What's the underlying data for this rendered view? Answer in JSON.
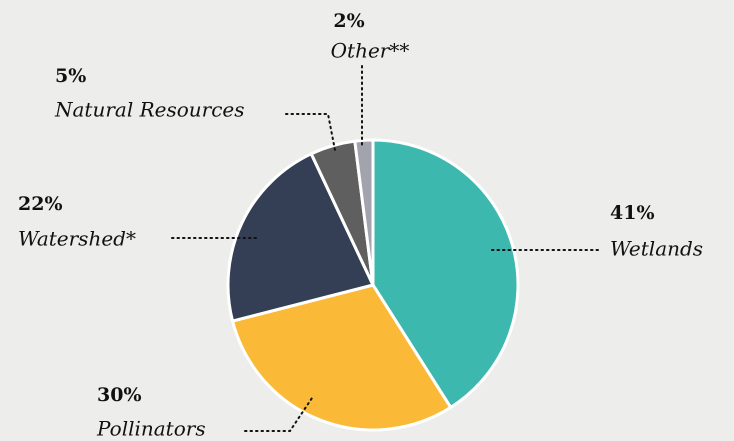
{
  "chart_data": {
    "type": "pie",
    "categories": [
      "Wetlands",
      "Pollinators",
      "Watershed*",
      "Natural Resources",
      "Other**"
    ],
    "values": [
      41,
      30,
      22,
      5,
      2
    ],
    "value_labels": [
      "41%",
      "30%",
      "22%",
      "5%",
      "2%"
    ],
    "colors": [
      "#3db8ae",
      "#fbb938",
      "#343f56",
      "#5f5f5f",
      "#a3a3ad"
    ]
  }
}
